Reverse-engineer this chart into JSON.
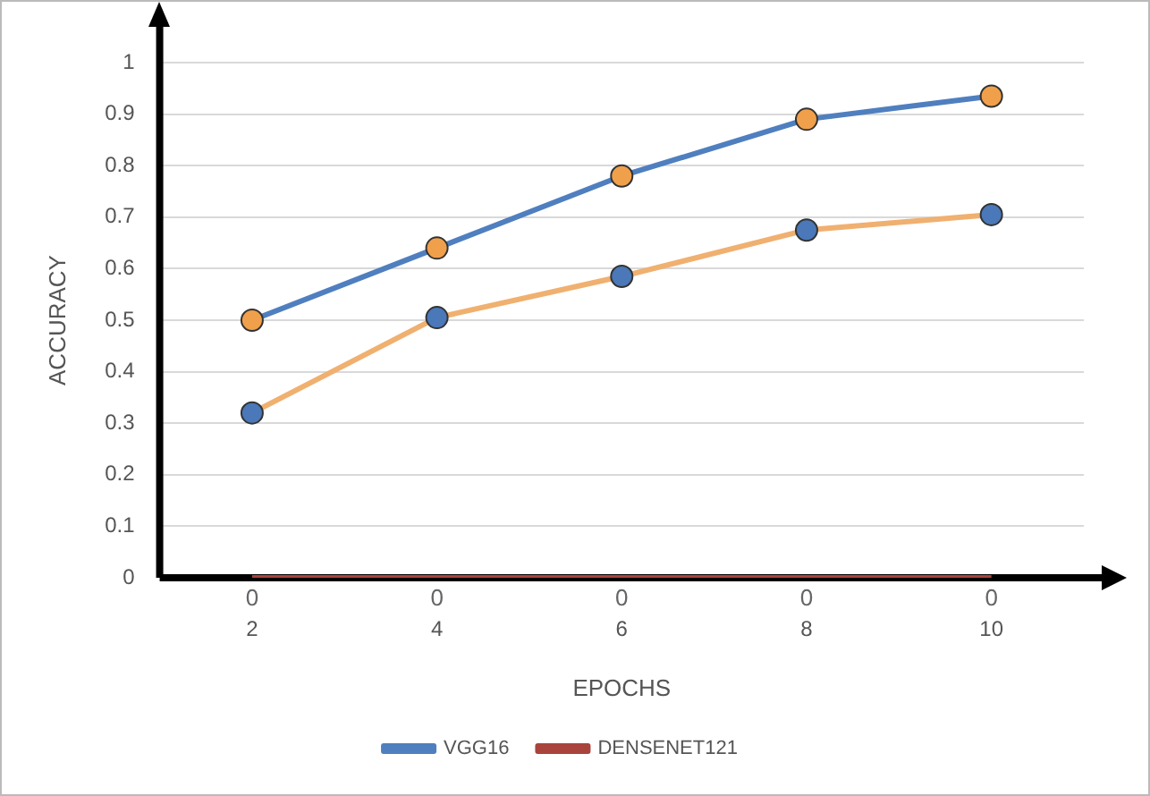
{
  "chart_data": {
    "type": "line",
    "xlabel": "EPOCHS",
    "ylabel": "ACCURACY",
    "categories": [
      "2",
      "4",
      "6",
      "8",
      "10"
    ],
    "series": [
      {
        "name": "VGG16",
        "color": "#4f7fbf",
        "colors": [
          "#f0a04b",
          "#f0a04b",
          "#f0a04b",
          "#f0a04b",
          "#f0a04b"
        ],
        "values": [
          0.5,
          0.64,
          0.78,
          0.89,
          0.935
        ]
      },
      {
        "color": "#f0b070",
        "colors": [
          "#4a78b8",
          "#4a78b8",
          "#4a78b8",
          "#4a78b8",
          "#4a78b8"
        ],
        "values": [
          0.32,
          0.505,
          0.585,
          0.675,
          0.705
        ]
      },
      {
        "name": "DENSENET121",
        "color": "#a9443c",
        "values": [
          0,
          0,
          0,
          0,
          0
        ],
        "value_labels": [
          "0",
          "0",
          "0",
          "0",
          "0"
        ],
        "marker": "none"
      }
    ],
    "ylim": [
      0,
      1
    ],
    "yticks": [
      0,
      0.1,
      0.2,
      0.3,
      0.4,
      0.5,
      0.6,
      0.7,
      0.8,
      0.9,
      1
    ],
    "grid": "y",
    "legend": "bottom",
    "marker": "circle"
  }
}
